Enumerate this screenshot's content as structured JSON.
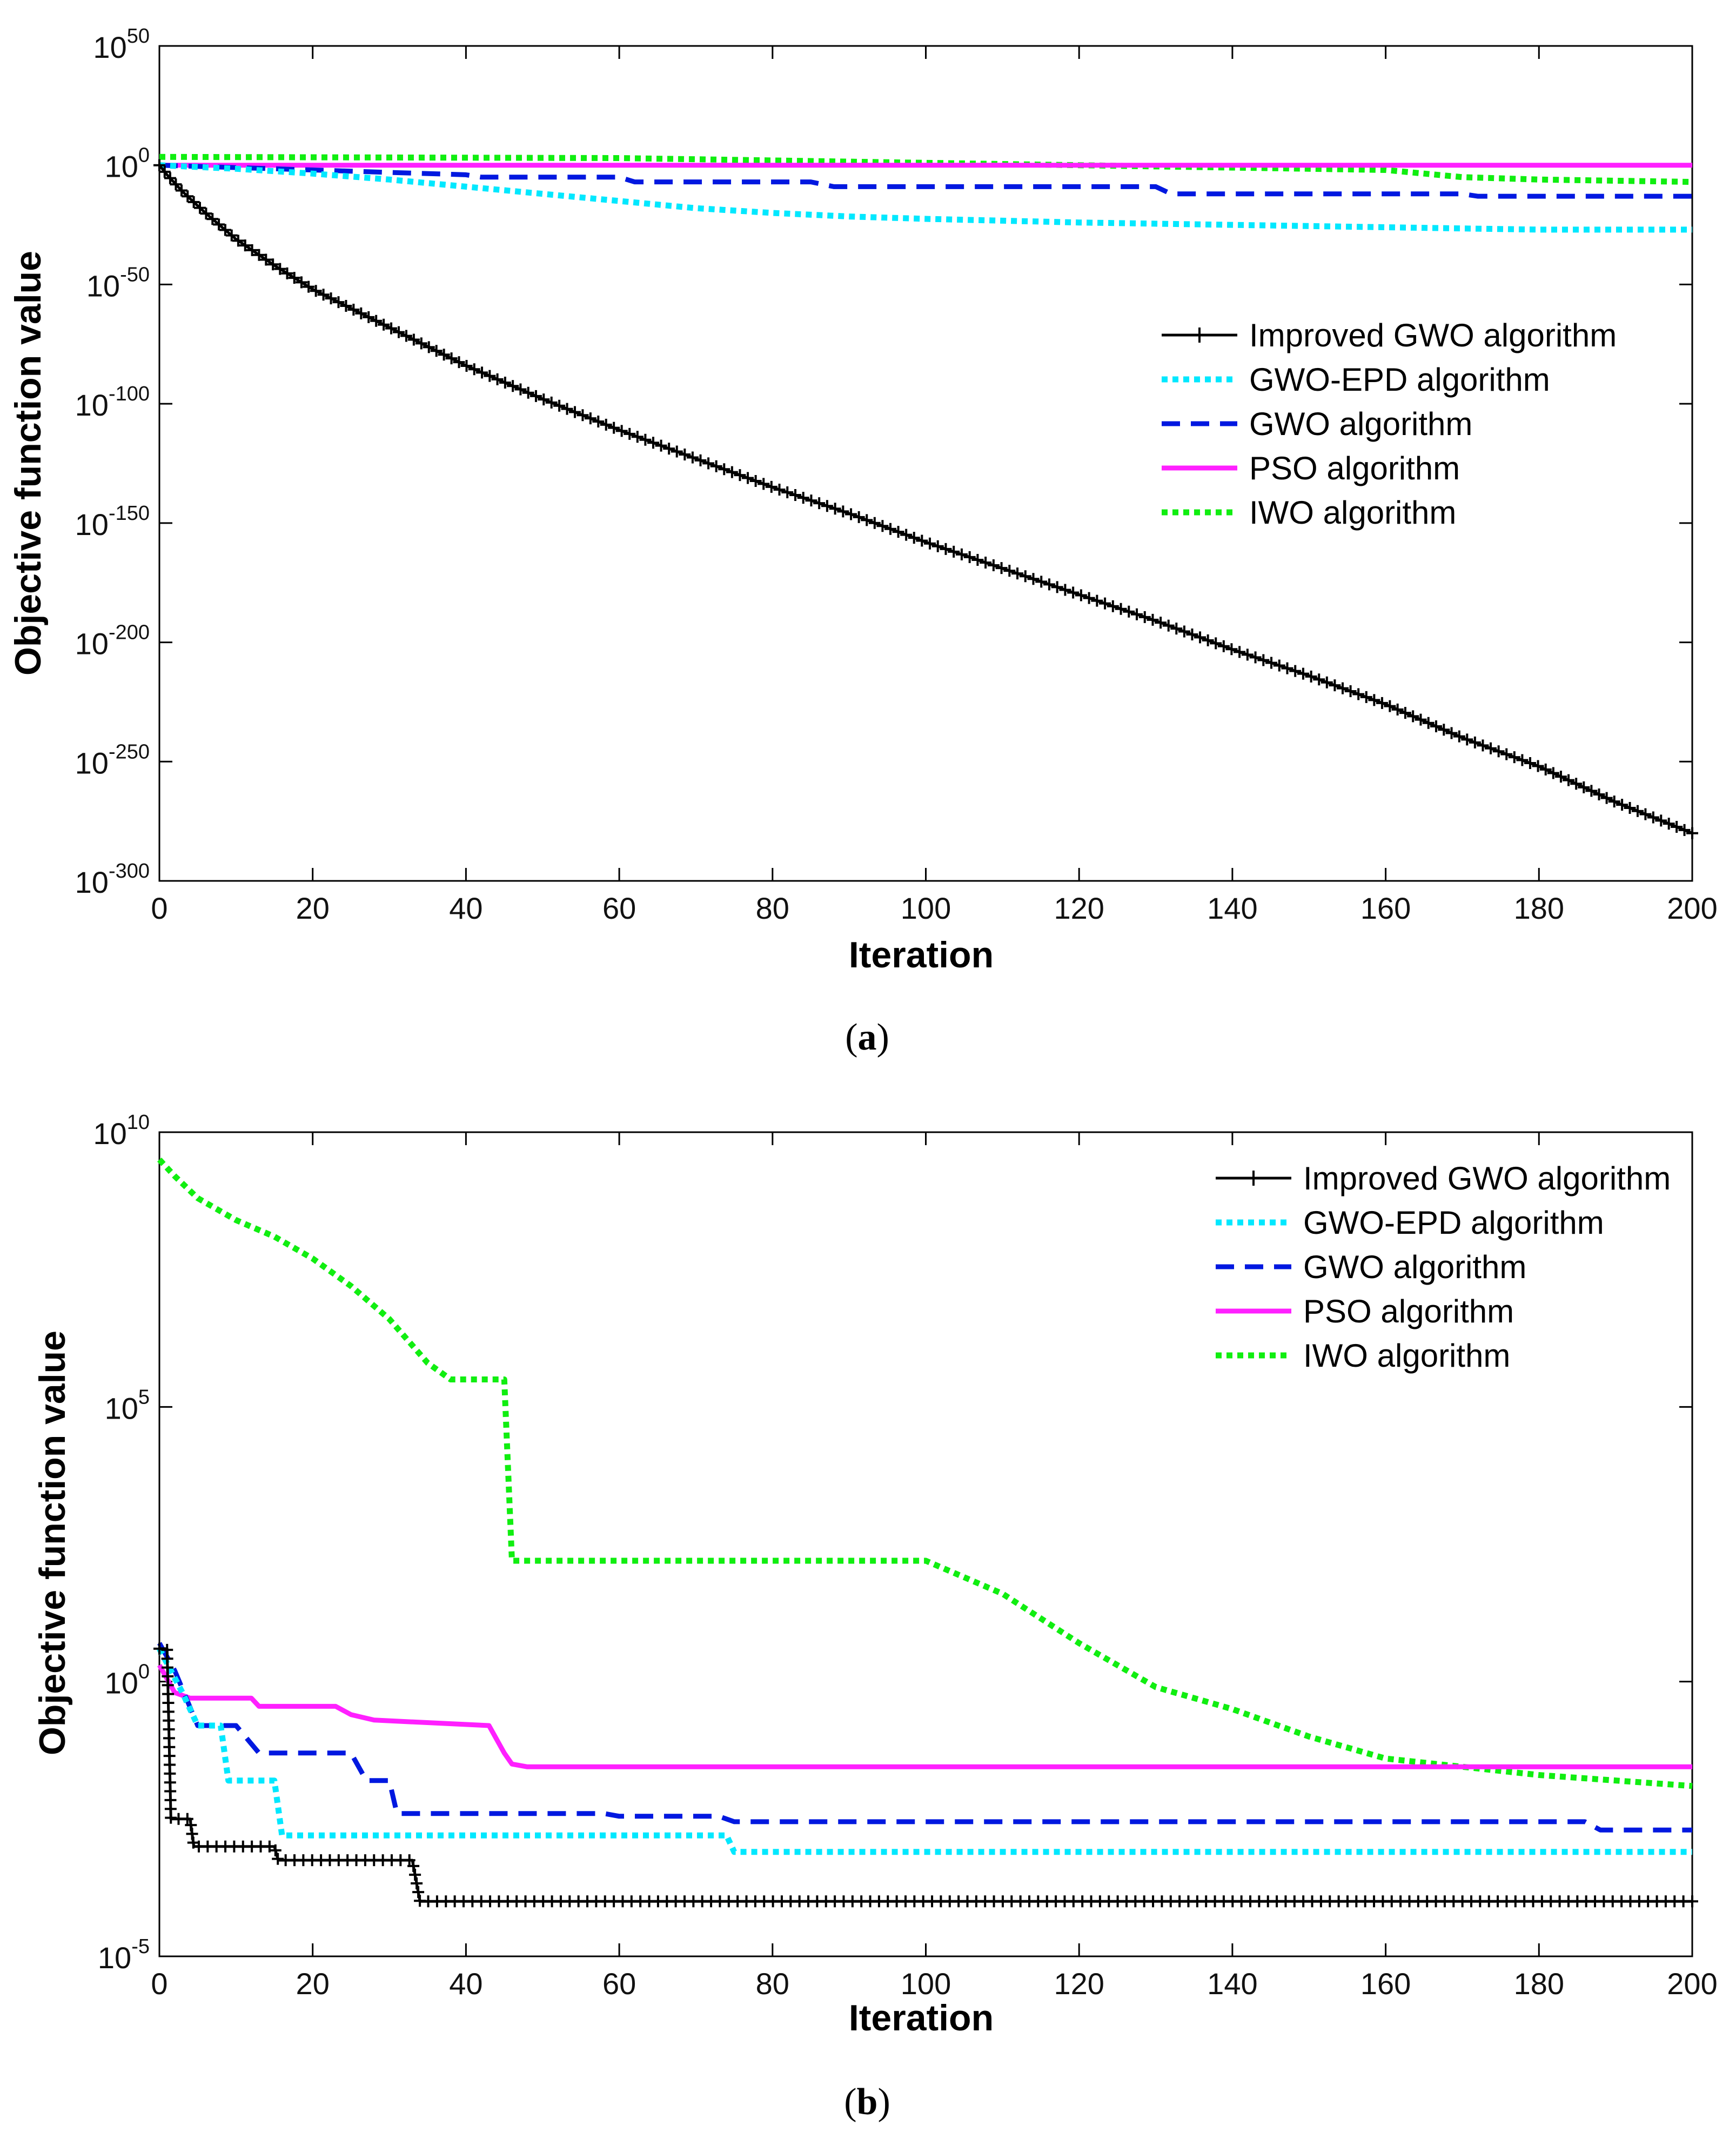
{
  "chart_data": [
    {
      "type": "line",
      "panel_label": "a",
      "caption": {
        "open": "(",
        "letter": "a",
        "close": ")"
      },
      "xlabel": "Iteration",
      "ylabel": "Objective function value",
      "xlim": [
        0,
        200
      ],
      "xticks": [
        "0",
        "20",
        "40",
        "60",
        "80",
        "100",
        "120",
        "140",
        "160",
        "180",
        "200"
      ],
      "yscale": "log",
      "ylim_exp": [
        -300,
        50
      ],
      "yticks": [
        {
          "base": "10",
          "exp": "50"
        },
        {
          "base": "10",
          "exp": "0"
        },
        {
          "base": "10",
          "exp": "-50"
        },
        {
          "base": "10",
          "exp": "-100"
        },
        {
          "base": "10",
          "exp": "-150"
        },
        {
          "base": "10",
          "exp": "-200"
        },
        {
          "base": "10",
          "exp": "-250"
        },
        {
          "base": "10",
          "exp": "-300"
        }
      ],
      "legend_position": "center-right",
      "series": [
        {
          "name": "Improved GWO algorithm",
          "color": "#000000",
          "style": "solid-plus",
          "x": [
            0,
            1,
            3,
            6,
            10,
            15,
            20,
            30,
            40,
            50,
            60,
            70,
            80,
            90,
            100,
            110,
            120,
            130,
            140,
            150,
            160,
            170,
            180,
            190,
            200
          ],
          "log10_y": [
            0,
            -4,
            -11,
            -20,
            -31,
            -42,
            -52,
            -68,
            -84,
            -98,
            -111,
            -123,
            -135,
            -146,
            -158,
            -169,
            -180,
            -191,
            -203,
            -214,
            -226,
            -240,
            -252,
            -267,
            -280
          ]
        },
        {
          "name": "GWO-EPD algorithm",
          "color": "#00e8ff",
          "style": "dotted",
          "x": [
            0,
            10,
            20,
            30,
            40,
            50,
            60,
            70,
            80,
            90,
            100,
            120,
            140,
            160,
            180,
            200
          ],
          "log10_y": [
            0,
            -1.5,
            -3.5,
            -6,
            -9,
            -12,
            -15,
            -18,
            -20,
            -21.5,
            -22.5,
            -24,
            -25,
            -26,
            -27,
            -27
          ]
        },
        {
          "name": "GWO algorithm",
          "color": "#0018e0",
          "style": "dashed",
          "x": [
            0,
            10,
            20,
            30,
            40,
            42,
            60,
            62,
            85,
            88,
            130,
            132,
            170,
            172,
            200
          ],
          "log10_y": [
            0,
            -1,
            -2,
            -3,
            -4,
            -5,
            -5,
            -7,
            -7,
            -9,
            -9,
            -12,
            -12,
            -13,
            -13
          ]
        },
        {
          "name": "PSO algorithm",
          "color": "#ff20ff",
          "style": "solid",
          "x": [
            0,
            200
          ],
          "log10_y": [
            0,
            0
          ]
        },
        {
          "name": "IWO algorithm",
          "color": "#10ee10",
          "style": "dotted",
          "x": [
            0,
            60,
            100,
            120,
            140,
            160,
            170,
            180,
            200
          ],
          "log10_y": [
            3.5,
            3,
            1,
            0,
            -1,
            -2,
            -5,
            -6,
            -7
          ]
        }
      ]
    },
    {
      "type": "line",
      "panel_label": "b",
      "caption": {
        "open": "(",
        "letter": "b",
        "close": ")"
      },
      "xlabel": "Iteration",
      "ylabel": "Objective function value",
      "xlim": [
        0,
        200
      ],
      "xticks": [
        "0",
        "20",
        "40",
        "60",
        "80",
        "100",
        "120",
        "140",
        "160",
        "180",
        "200"
      ],
      "yscale": "log",
      "ylim_exp": [
        -5,
        10
      ],
      "yticks": [
        {
          "base": "10",
          "exp": "10"
        },
        {
          "base": "10",
          "exp": "5"
        },
        {
          "base": "10",
          "exp": "0"
        },
        {
          "base": "10",
          "exp": "-5"
        }
      ],
      "legend_position": "top-right",
      "series": [
        {
          "name": "Improved GWO algorithm",
          "color": "#000000",
          "style": "solid-plus",
          "x": [
            0,
            1,
            1.5,
            4,
            4.5,
            15,
            15.5,
            33,
            34,
            200
          ],
          "log10_y": [
            0.6,
            0.6,
            -2.5,
            -2.5,
            -3,
            -3,
            -3.25,
            -3.25,
            -4,
            -4
          ]
        },
        {
          "name": "GWO-EPD algorithm",
          "color": "#00e8ff",
          "style": "dotted",
          "x": [
            0,
            3,
            5,
            8,
            9,
            15,
            16,
            74,
            75,
            200
          ],
          "log10_y": [
            0.6,
            -0.2,
            -0.8,
            -0.8,
            -1.8,
            -1.8,
            -2.8,
            -2.8,
            -3.1,
            -3.1
          ]
        },
        {
          "name": "GWO algorithm",
          "color": "#0018e0",
          "style": "dashed",
          "x": [
            0,
            2,
            5,
            10,
            13,
            25,
            27,
            30,
            31,
            58,
            60,
            73,
            75,
            186,
            188,
            200
          ],
          "log10_y": [
            0.7,
            0.2,
            -0.8,
            -0.8,
            -1.3,
            -1.3,
            -1.8,
            -1.8,
            -2.4,
            -2.4,
            -2.45,
            -2.45,
            -2.55,
            -2.55,
            -2.7,
            -2.7
          ]
        },
        {
          "name": "PSO algorithm",
          "color": "#ff20ff",
          "style": "solid",
          "x": [
            0,
            2,
            4,
            12,
            13,
            23,
            25,
            28,
            43,
            45,
            46,
            48,
            200
          ],
          "log10_y": [
            0.3,
            -0.2,
            -0.3,
            -0.3,
            -0.45,
            -0.45,
            -0.6,
            -0.7,
            -0.8,
            -1.3,
            -1.5,
            -1.55,
            -1.55
          ]
        },
        {
          "name": "IWO algorithm",
          "color": "#10ee10",
          "style": "dotted",
          "x": [
            0,
            2,
            5,
            10,
            15,
            20,
            25,
            30,
            35,
            38,
            45,
            46,
            100,
            110,
            120,
            130,
            140,
            150,
            160,
            180,
            200
          ],
          "log10_y": [
            9.5,
            9.2,
            8.8,
            8.4,
            8.1,
            7.7,
            7.2,
            6.6,
            5.8,
            5.5,
            5.5,
            2.2,
            2.2,
            1.6,
            0.7,
            -0.1,
            -0.5,
            -1.0,
            -1.4,
            -1.7,
            -1.9
          ]
        }
      ]
    }
  ]
}
